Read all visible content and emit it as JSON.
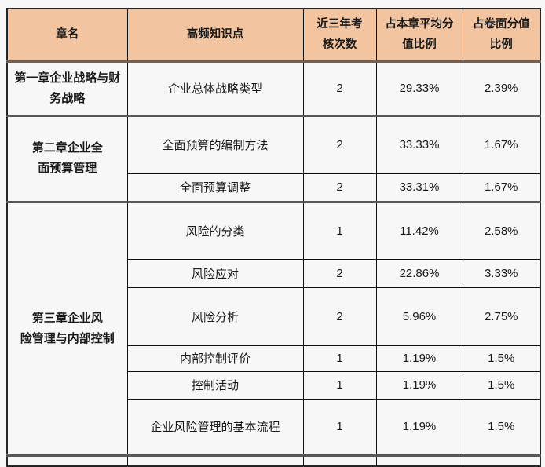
{
  "colors": {
    "page_bg": "#f7f7f7",
    "header_bg": "#f2c5a0",
    "grid": "#111111",
    "outer_border": "#262626",
    "section_divider": "#575757",
    "header_divider": "#6e6056",
    "text": "#1a1a1a"
  },
  "table": {
    "headers": [
      "章名",
      "高频知识点",
      "近三年考\n核次数",
      "占本章平均分\n值比例",
      "占卷面分值\n比例"
    ],
    "sections": [
      {
        "chapter": "第一章企业战略与财\n务战略",
        "rows": [
          {
            "topic": "企业总体战略类型",
            "count": "2",
            "chapter_pct": "29.33%",
            "paper_pct": "2.39%"
          }
        ]
      },
      {
        "chapter": "第二章企业全\n面预算管理",
        "rows": [
          {
            "topic": "全面预算的编制方法",
            "count": "2",
            "chapter_pct": "33.33%",
            "paper_pct": "1.67%"
          },
          {
            "topic": "全面预算调整",
            "count": "2",
            "chapter_pct": "33.31%",
            "paper_pct": "1.67%"
          }
        ]
      },
      {
        "chapter": "第三章企业风\n险管理与内部控制",
        "rows": [
          {
            "topic": "风险的分类",
            "count": "1",
            "chapter_pct": "11.42%",
            "paper_pct": "2.58%"
          },
          {
            "topic": "风险应对",
            "count": "2",
            "chapter_pct": "22.86%",
            "paper_pct": "3.33%"
          },
          {
            "topic": "风险分析",
            "count": "2",
            "chapter_pct": "5.96%",
            "paper_pct": "2.75%"
          },
          {
            "topic": "内部控制评价",
            "count": "1",
            "chapter_pct": "1.19%",
            "paper_pct": "1.5%"
          },
          {
            "topic": "控制活动",
            "count": "1",
            "chapter_pct": "1.19%",
            "paper_pct": "1.5%"
          },
          {
            "topic": "企业风险管理的基本流程",
            "count": "1",
            "chapter_pct": "1.19%",
            "paper_pct": "1.5%"
          }
        ]
      }
    ]
  }
}
